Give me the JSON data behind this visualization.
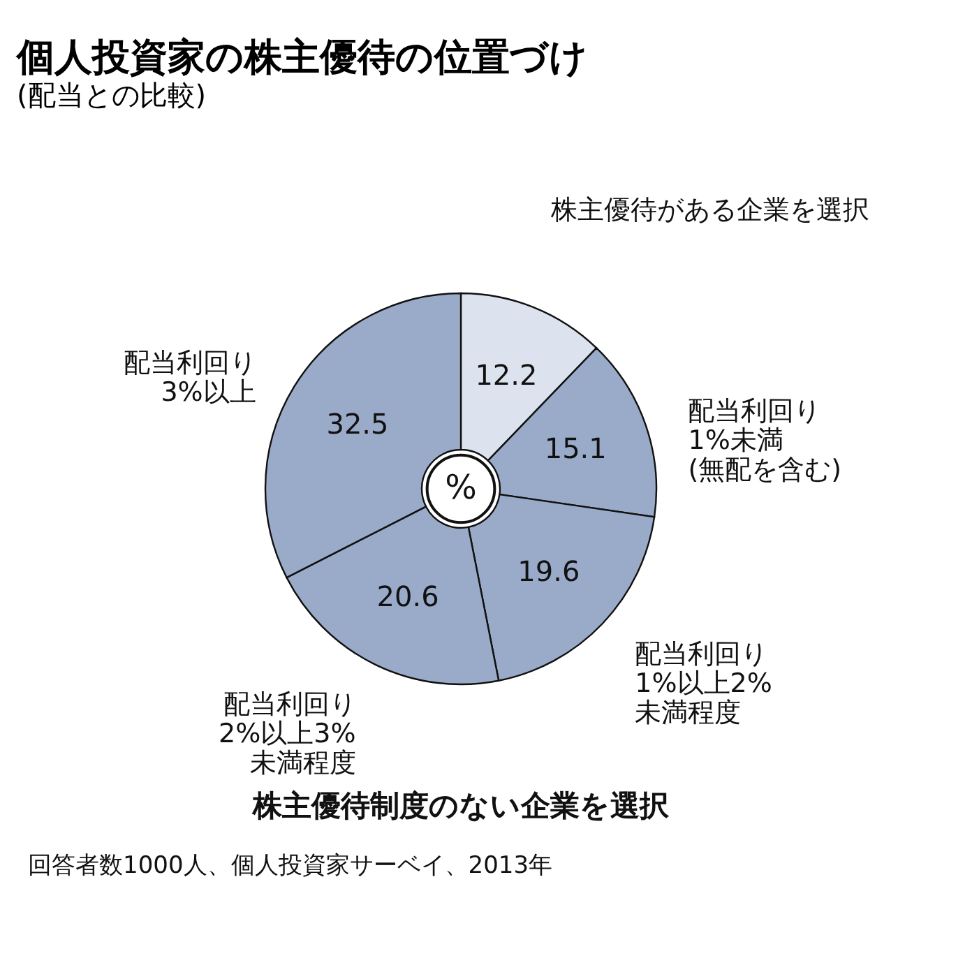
{
  "chart_data": {
    "type": "donut",
    "title": "個人投資家の株主優待の位置づけ",
    "subtitle": "(配当との比較)",
    "categories": [
      "株主優待がある企業を選択",
      "配当利回り\n1%未満\n(無配を含む)",
      "配当利回り\n1%以上2%\n未満程度",
      "配当利回り\n2%以上3%\n未満程度",
      "配当利回り\n3%以上"
    ],
    "values": [
      12.2,
      15.1,
      19.6,
      20.6,
      32.5
    ],
    "colors": [
      "#dde3ee",
      "#9aabc9",
      "#9aabc9",
      "#9aabc9",
      "#9aabc9"
    ],
    "data_labels": true,
    "annotations": [
      "%",
      "株主優待制度のない企業を選択",
      "回答者数1000人、個人投資家サーベイ、2013年"
    ]
  }
}
